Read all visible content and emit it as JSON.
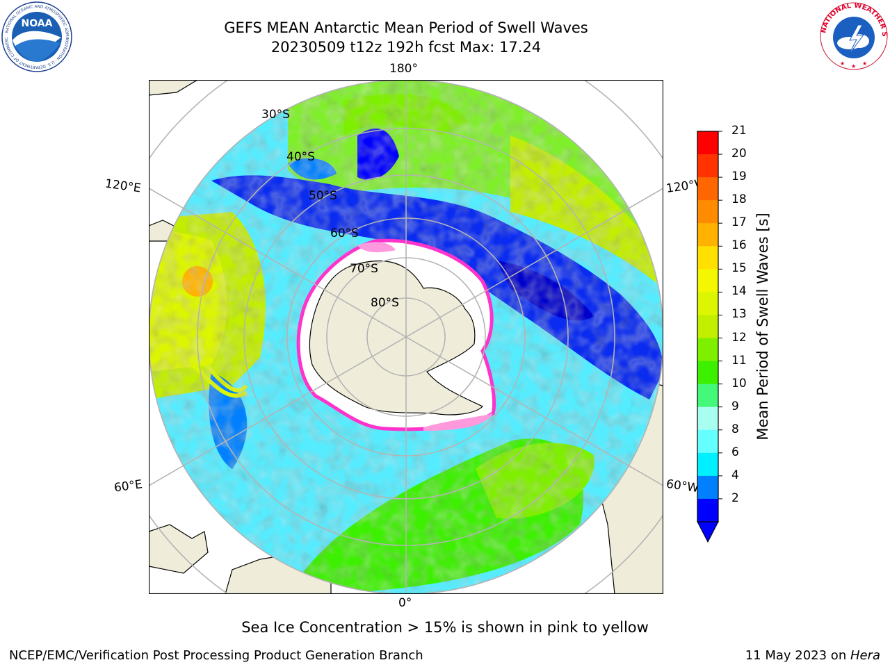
{
  "header": {
    "title": "GEFS MEAN Antarctic Mean Period of Swell Waves",
    "subtitle": "20230509 t12z 192h fcst   Max: 17.24"
  },
  "logos": {
    "left": {
      "text": "NOAA",
      "ring_text": "NATIONAL OCEANIC AND ATMOSPHERIC ADMINISTRATION · U.S. DEPARTMENT OF COMMERCE"
    },
    "right": {
      "ring_text": "NATIONAL WEATHER SERVICE"
    }
  },
  "map": {
    "longitude_labels": {
      "top": "180°",
      "left_upper": "120°E",
      "right_upper": "120°W",
      "left_lower": "60°E",
      "right_lower": "60°W",
      "bottom": "0°"
    },
    "latitude_labels": [
      "30°S",
      "40°S",
      "50°S",
      "60°S",
      "70°S",
      "80°S"
    ],
    "colors": {
      "land": "#efedda",
      "ice": "#ffffff",
      "ice_edge": "#ff33cc",
      "grid": "#b4b4b4"
    }
  },
  "colorbar": {
    "label": "Mean Period of Swell Waves [s]",
    "ticks": [
      "21",
      "20",
      "19",
      "18",
      "17",
      "16",
      "15",
      "14",
      "13",
      "12",
      "11",
      "10",
      "9",
      "8",
      "6",
      "4",
      "2"
    ],
    "colors_top_to_bottom": [
      "#ff0000",
      "#ff3300",
      "#ff6600",
      "#ff8c00",
      "#ffb300",
      "#ffe000",
      "#f3f700",
      "#dcf500",
      "#c2ee00",
      "#7fef00",
      "#3cf000",
      "#44f87a",
      "#a8fff0",
      "#66ffff",
      "#00f0ff",
      "#0080ff",
      "#0000ff"
    ],
    "extend_color": "#0000ff"
  },
  "note": "Sea Ice Concentration > 15% is shown in pink to yellow",
  "footer": {
    "left": "NCEP/EMC/Verification Post Processing Product Generation Branch",
    "right_prefix": "11 May 2023 on ",
    "right_host": "Hera"
  }
}
